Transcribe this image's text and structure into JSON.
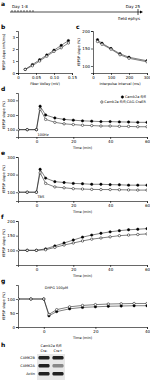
{
  "timeline": {
    "title": "a",
    "annotations": [
      "Day 1-8",
      "Day 25",
      "field ephys"
    ]
  },
  "chart_data": [
    {
      "type": "line",
      "title": "b",
      "x_label": "Fiber Volley (mV)",
      "y_label": "fEPSP slope (mV/ms)",
      "x": [
        0.02,
        0.04,
        0.06,
        0.08,
        0.1,
        0.12,
        0.14
      ],
      "series": [
        {
          "color": "#000000",
          "marker": "filled",
          "values": [
            0.3,
            0.7,
            1.1,
            1.5,
            1.9,
            2.3,
            2.7
          ]
        },
        {
          "color": "#000000",
          "marker": "open",
          "values": [
            0.3,
            0.6,
            1.0,
            1.4,
            1.8,
            2.1,
            2.5
          ]
        }
      ],
      "xlim": [
        0,
        0.15
      ],
      "xticks": [
        0,
        0.05,
        {
          "value": 0.1,
          "label": "0.10"
        },
        0.15
      ],
      "ylim": [
        0,
        3.5
      ],
      "yticks": [
        0,
        1,
        2,
        3
      ]
    },
    {
      "type": "line",
      "title": "c",
      "x_label": "Interpulse interval (ms)",
      "y_label": "fEPSP slope (%)",
      "x": [
        25,
        50,
        100,
        150,
        200,
        300
      ],
      "series": [
        {
          "color": "#000000",
          "marker": "filled",
          "values": [
            175,
            165,
            150,
            135,
            125,
            115
          ]
        },
        {
          "color": "#000000",
          "marker": "open",
          "values": [
            170,
            162,
            148,
            132,
            122,
            112
          ]
        }
      ],
      "xlim": [
        0,
        300
      ],
      "xticks": [
        0,
        100,
        200,
        300
      ],
      "ylim": [
        80,
        200
      ],
      "yticks": [
        100,
        150,
        200
      ]
    },
    {
      "type": "line",
      "title": "d",
      "x_label": "Time (min)",
      "y_label": "fEPSP slope (%)",
      "legend": "top-right",
      "annotations": [
        {
          "text": "100Hz",
          "x": 0,
          "y": 60
        }
      ],
      "x": [
        -10,
        -5,
        0,
        2,
        5,
        10,
        15,
        20,
        25,
        30,
        35,
        40,
        45,
        50,
        55,
        60
      ],
      "series": [
        {
          "name": "Camk2a fl/fl",
          "color": "#000000",
          "marker": "filled",
          "values": [
            100,
            100,
            100,
            260,
            200,
            180,
            170,
            165,
            160,
            158,
            155,
            155,
            153,
            152,
            150,
            150
          ]
        },
        {
          "name": "Camk2a fl/fl;CAG-CreER",
          "color": "#000000",
          "marker": "open",
          "values": [
            100,
            100,
            100,
            240,
            170,
            150,
            140,
            135,
            130,
            128,
            125,
            125,
            123,
            122,
            120,
            120
          ]
        }
      ],
      "xlim": [
        -10,
        60
      ],
      "xticks": [
        0,
        20,
        40,
        60
      ],
      "ylim": [
        50,
        350
      ],
      "yticks": [
        100,
        200,
        300
      ]
    },
    {
      "type": "line",
      "title": "e",
      "x_label": "Time (min)",
      "y_label": "fEPSP slope (%)",
      "annotations": [
        {
          "text": "TBS",
          "x": 0,
          "y": 65
        }
      ],
      "x": [
        -10,
        -5,
        0,
        2,
        5,
        10,
        15,
        20,
        25,
        30,
        35,
        40,
        45,
        50,
        55,
        60
      ],
      "series": [
        {
          "color": "#000000",
          "marker": "filled",
          "values": [
            100,
            100,
            100,
            230,
            180,
            160,
            155,
            150,
            148,
            145,
            145,
            143,
            142,
            140,
            140,
            140
          ]
        },
        {
          "color": "#000000",
          "marker": "open",
          "values": [
            100,
            100,
            100,
            210,
            150,
            130,
            125,
            120,
            118,
            116,
            115,
            115,
            114,
            113,
            112,
            112
          ]
        }
      ],
      "xlim": [
        -10,
        60
      ],
      "xticks": [
        0,
        20,
        40,
        60
      ],
      "ylim": [
        50,
        300
      ],
      "yticks": [
        100,
        200,
        300
      ]
    },
    {
      "type": "line",
      "title": "f",
      "x_label": "Time (min)",
      "y_label": "fEPSP slope (%)",
      "x": [
        -10,
        -5,
        0,
        5,
        10,
        15,
        20,
        25,
        30,
        35,
        40,
        45,
        50,
        55,
        60
      ],
      "series": [
        {
          "color": "#000000",
          "marker": "filled",
          "values": [
            100,
            100,
            100,
            105,
            115,
            125,
            135,
            145,
            152,
            158,
            163,
            167,
            170,
            172,
            174
          ]
        },
        {
          "color": "#000000",
          "marker": "open",
          "values": [
            100,
            100,
            100,
            102,
            110,
            118,
            125,
            132,
            138,
            142,
            146,
            150,
            152,
            154,
            156
          ]
        }
      ],
      "xlim": [
        -10,
        60
      ],
      "xticks": [
        0,
        20,
        40,
        60
      ],
      "ylim": [
        50,
        200
      ],
      "yticks": [
        100,
        150,
        200
      ]
    },
    {
      "type": "line",
      "title": "g",
      "x_label": "Time (min)",
      "y_label": "fEPSP slope (%)",
      "annotations": [
        {
          "text": "DHPG 100µM",
          "x": 0,
          "y": 135
        }
      ],
      "x": [
        -10,
        -5,
        0,
        2,
        5,
        10,
        15,
        20,
        25,
        30,
        35,
        40
      ],
      "series": [
        {
          "color": "#000000",
          "marker": "filled",
          "values": [
            100,
            100,
            100,
            40,
            55,
            65,
            70,
            72,
            74,
            75,
            76,
            76
          ]
        },
        {
          "color": "#000000",
          "marker": "open",
          "values": [
            100,
            100,
            100,
            45,
            62,
            72,
            77,
            80,
            82,
            83,
            84,
            84
          ]
        }
      ],
      "xlim": [
        -10,
        40
      ],
      "xticks": [
        0,
        20,
        40
      ],
      "ylim": [
        0,
        150
      ],
      "yticks": [
        0,
        50,
        100
      ]
    }
  ],
  "blot": {
    "title": "h",
    "header": "Camk2a fl/fl",
    "lanes": [
      "Cre-",
      "Cre+"
    ],
    "bands": [
      "CAMK2B",
      "CAMK2A",
      "Actin"
    ]
  }
}
